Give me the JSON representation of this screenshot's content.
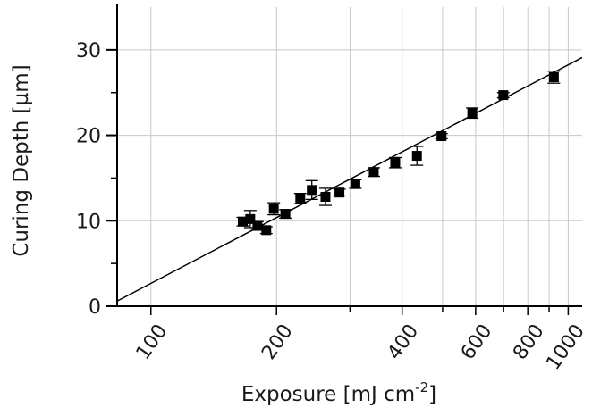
{
  "chart_data": {
    "type": "scatter",
    "title": "",
    "xlabel_main": "Exposure [mJ cm",
    "xlabel_sup": "-2",
    "xlabel_end": "]",
    "ylabel": "Curing Depth [µm]",
    "x_scale": "log",
    "xlim": [
      83,
      1080
    ],
    "ylim": [
      0,
      35
    ],
    "x_ticks": [
      100,
      200,
      400,
      600,
      800,
      1000
    ],
    "x_tick_labels": [
      "100",
      "200",
      "400",
      "600",
      "800",
      "1000"
    ],
    "x_grid": [
      100,
      200,
      300,
      400,
      500,
      600,
      700,
      800,
      900,
      1000
    ],
    "y_ticks": [
      0,
      10,
      20,
      30
    ],
    "y_tick_labels": [
      "0",
      "10",
      "20",
      "30"
    ],
    "grid": true,
    "fit_line": {
      "x": [
        83,
        1080
      ],
      "y": [
        0.6,
        29.1
      ]
    },
    "points": [
      {
        "x": 166,
        "y": 9.9,
        "err": 0.5
      },
      {
        "x": 173,
        "y": 10.2,
        "err": 1.0
      },
      {
        "x": 180,
        "y": 9.4,
        "err": 0.5
      },
      {
        "x": 189,
        "y": 8.9,
        "err": 0.4
      },
      {
        "x": 197,
        "y": 11.4,
        "err": 0.7
      },
      {
        "x": 210,
        "y": 10.8,
        "err": 0.5
      },
      {
        "x": 228,
        "y": 12.6,
        "err": 0.6
      },
      {
        "x": 243,
        "y": 13.6,
        "err": 1.1
      },
      {
        "x": 262,
        "y": 12.8,
        "err": 1.0
      },
      {
        "x": 283,
        "y": 13.3,
        "err": 0.4
      },
      {
        "x": 309,
        "y": 14.3,
        "err": 0.5
      },
      {
        "x": 342,
        "y": 15.7,
        "err": 0.5
      },
      {
        "x": 385,
        "y": 16.8,
        "err": 0.6
      },
      {
        "x": 434,
        "y": 17.6,
        "err": 1.1
      },
      {
        "x": 497,
        "y": 19.9,
        "err": 0.3
      },
      {
        "x": 589,
        "y": 22.6,
        "err": 0.6
      },
      {
        "x": 699,
        "y": 24.7,
        "err": 0.3
      },
      {
        "x": 924,
        "y": 26.8,
        "err": 0.7
      }
    ]
  }
}
